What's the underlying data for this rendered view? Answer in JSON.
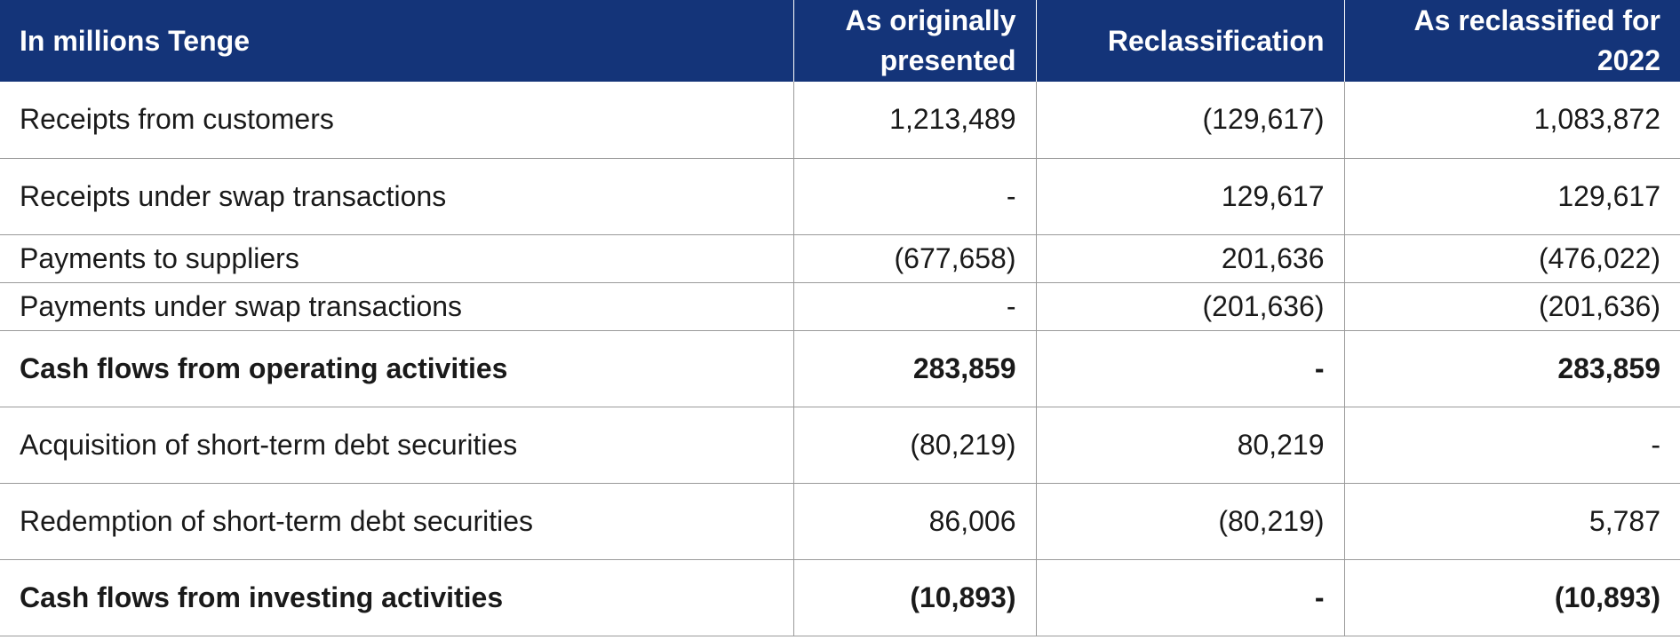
{
  "header": {
    "col0": "In millions Tenge",
    "col1": "As originally presented",
    "col2": "Reclassification",
    "col3": "As reclassified for 2022"
  },
  "rows": [
    {
      "label": "Receipts from customers",
      "original": "1,213,489",
      "reclass": "(129,617)",
      "reclassified": "1,083,872"
    },
    {
      "label": "Receipts under swap transactions",
      "original": "-",
      "reclass": "129,617",
      "reclassified": "129,617"
    },
    {
      "label": "Payments to suppliers",
      "original": "(677,658)",
      "reclass": "201,636",
      "reclassified": "(476,022)"
    },
    {
      "label": "Payments under swap transactions",
      "original": "-",
      "reclass": "(201,636)",
      "reclassified": "(201,636)"
    },
    {
      "label": "Cash flows from operating activities",
      "original": "283,859",
      "reclass": "-",
      "reclassified": "283,859"
    },
    {
      "label": "Acquisition of short-term debt securities",
      "original": "(80,219)",
      "reclass": "80,219",
      "reclassified": "-"
    },
    {
      "label": "Redemption of short-term debt securities",
      "original": "86,006",
      "reclass": "(80,219)",
      "reclassified": "5,787"
    },
    {
      "label": "Cash flows from investing activities",
      "original": "(10,893)",
      "reclass": "-",
      "reclassified": "(10,893)"
    }
  ],
  "colors": {
    "header_bg": "#143479",
    "header_text": "#ffffff",
    "grid": "#9a9a9a"
  }
}
